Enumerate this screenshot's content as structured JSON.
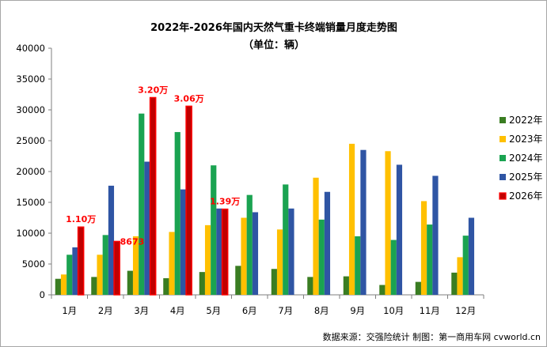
{
  "chart_data": {
    "type": "bar",
    "title": "2022年-2026年国内天然气重卡终端销量月度走势图",
    "subtitle": "（单位：辆）",
    "categories": [
      "1月",
      "2月",
      "3月",
      "4月",
      "5月",
      "6月",
      "7月",
      "8月",
      "9月",
      "10月",
      "11月",
      "12月"
    ],
    "ylim": [
      0,
      40000
    ],
    "yticks": [
      "0",
      "5000",
      "10000",
      "15000",
      "20000",
      "25000",
      "30000",
      "35000",
      "40000"
    ],
    "series": [
      {
        "name": "2022年",
        "color": "#3a7d22",
        "values": [
          2600,
          2900,
          3900,
          2700,
          3700,
          4700,
          4200,
          2900,
          3000,
          1600,
          2100,
          3600
        ]
      },
      {
        "name": "2023年",
        "color": "#ffc000",
        "values": [
          3300,
          6500,
          9500,
          10200,
          11300,
          12500,
          10600,
          19000,
          24500,
          23300,
          15200,
          6100
        ]
      },
      {
        "name": "2024年",
        "color": "#1aa351",
        "values": [
          6500,
          9700,
          29400,
          26400,
          21000,
          16200,
          17900,
          12200,
          9500,
          8900,
          11400,
          9600
        ]
      },
      {
        "name": "2025年",
        "color": "#2f55a4",
        "values": [
          7700,
          17700,
          21600,
          17100,
          14000,
          13400,
          14000,
          16700,
          23500,
          21100,
          19300,
          12500
        ]
      },
      {
        "name": "2026年",
        "color": "#ff0000",
        "fill": "#c00000",
        "values": [
          11000,
          8673,
          32000,
          30600,
          13900,
          null,
          null,
          null,
          null,
          null,
          null,
          null
        ]
      }
    ],
    "annotations": [
      {
        "text": "1.10万",
        "month_index": 0
      },
      {
        "text": "8673",
        "month_index": 1
      },
      {
        "text": "3.20万",
        "month_index": 2
      },
      {
        "text": "3.06万",
        "month_index": 3
      },
      {
        "text": "1.39万",
        "month_index": 4
      }
    ],
    "legend_position": "right",
    "grid": false
  },
  "source_text": "数据来源：交强险统计  制图：第一商用车网 cvworld.cn"
}
